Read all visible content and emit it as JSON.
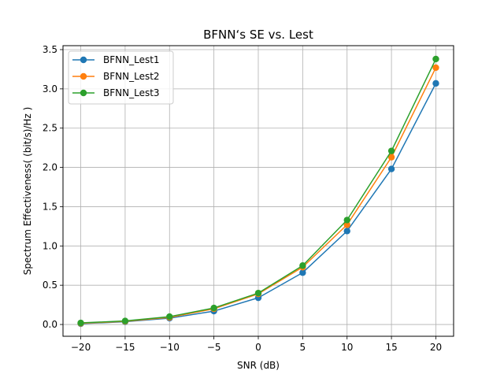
{
  "chart_data": {
    "type": "line",
    "title": "BFNN‘s SE vs. Lest",
    "xlabel": "SNR (dB)",
    "ylabel": "Spectrum Effectiveness( (bit/s)/Hz )",
    "x": [
      -20,
      -15,
      -10,
      -5,
      0,
      5,
      10,
      15,
      20
    ],
    "xticks": [
      -20,
      -15,
      -10,
      -5,
      0,
      5,
      10,
      15,
      20
    ],
    "xtick_labels": [
      "−20",
      "−15",
      "−10",
      "−5",
      "0",
      "5",
      "10",
      "15",
      "20"
    ],
    "yticks": [
      0.0,
      0.5,
      1.0,
      1.5,
      2.0,
      2.5,
      3.0,
      3.5
    ],
    "ytick_labels": [
      "0.0",
      "0.5",
      "1.0",
      "1.5",
      "2.0",
      "2.5",
      "3.0",
      "3.5"
    ],
    "xlim": [
      -22,
      22
    ],
    "ylim": [
      -0.15,
      3.55
    ],
    "grid": true,
    "legend_position": "top-left",
    "series": [
      {
        "name": "BFNN_Lest1",
        "color": "#1f77b4",
        "values": [
          0.01,
          0.035,
          0.08,
          0.17,
          0.34,
          0.66,
          1.19,
          1.98,
          3.07
        ]
      },
      {
        "name": "BFNN_Lest2",
        "color": "#ff7f0e",
        "values": [
          0.015,
          0.04,
          0.09,
          0.2,
          0.39,
          0.73,
          1.27,
          2.13,
          3.27
        ]
      },
      {
        "name": "BFNN_Lest3",
        "color": "#2ca02c",
        "values": [
          0.02,
          0.045,
          0.1,
          0.21,
          0.4,
          0.75,
          1.33,
          2.21,
          3.38
        ]
      }
    ]
  }
}
